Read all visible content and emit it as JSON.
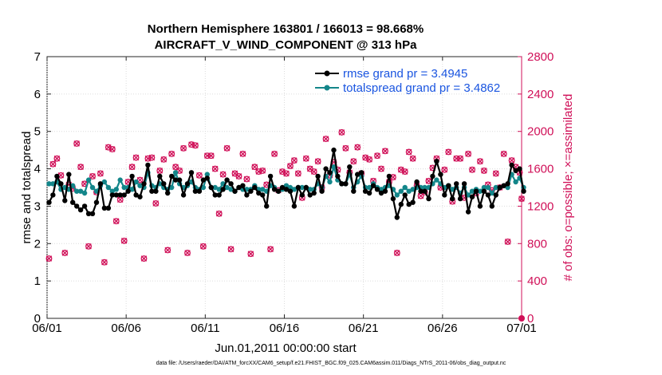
{
  "chart_data": {
    "type": "line",
    "title": "Northern Hemisphere 163801 / 166013 = 98.668%",
    "subtitle": "AIRCRAFT_V_WIND_COMPONENT @ 313 hPa",
    "xlabel": "Jun.01,2011 00:00:00 start",
    "ylabel": "rmse and totalspread",
    "y2label": "# of obs: o=possible; ×=assimilated",
    "footnote": "data file: /Users/raeder/DAI/ATM_forcXX/CAM6_setup/f.e21.FHIST_BGC.f09_025.CAM6assim.011/Diags_NTrS_2011-06/obs_diag_output.nc",
    "xlim": [
      0,
      30
    ],
    "ylim": [
      0,
      7
    ],
    "y2lim": [
      0,
      2800
    ],
    "xticks": [
      0,
      5,
      10,
      15,
      20,
      25,
      30
    ],
    "xtick_labels": [
      "06/01",
      "06/06",
      "06/11",
      "06/16",
      "06/21",
      "06/26",
      "07/01"
    ],
    "yticks": [
      0,
      1,
      2,
      3,
      4,
      5,
      6,
      7
    ],
    "ytick_labels": [
      "0",
      "1",
      "2",
      "3",
      "4",
      "5",
      "6",
      "7"
    ],
    "y2ticks": [
      0,
      400,
      800,
      1200,
      1600,
      2000,
      2400,
      2800
    ],
    "y2tick_labels": [
      "0",
      "400",
      "800",
      "1200",
      "1600",
      "2000",
      "2400",
      "2800"
    ],
    "series": [
      {
        "name": "rmse grand pr = 3.4945",
        "axis": "left",
        "color": "#000000",
        "x_start": 0.125,
        "x_step": 0.25,
        "values": [
          3.1,
          3.3,
          3.8,
          3.6,
          3.15,
          3.85,
          3.1,
          3.0,
          2.9,
          3.0,
          2.8,
          2.8,
          3.1,
          3.6,
          2.95,
          2.95,
          3.3,
          3.3,
          3.3,
          3.3,
          3.4,
          3.8,
          3.3,
          3.25,
          3.6,
          4.1,
          3.4,
          3.4,
          3.8,
          3.6,
          3.35,
          3.8,
          3.7,
          3.7,
          3.3,
          3.6,
          3.9,
          3.4,
          3.4,
          3.7,
          3.75,
          3.5,
          3.3,
          3.3,
          3.45,
          3.7,
          3.6,
          3.4,
          3.5,
          3.55,
          3.3,
          3.4,
          3.5,
          3.35,
          3.3,
          3.0,
          3.8,
          3.45,
          3.4,
          3.5,
          3.45,
          3.4,
          3.0,
          3.5,
          3.3,
          3.5,
          3.3,
          3.35,
          3.8,
          3.4,
          4.0,
          3.9,
          4.5,
          3.8,
          3.6,
          3.6,
          4.05,
          3.4,
          3.85,
          3.9,
          3.4,
          3.35,
          3.55,
          3.45,
          3.35,
          3.4,
          3.8,
          3.2,
          2.7,
          3.05,
          3.3,
          3.05,
          3.1,
          3.65,
          3.4,
          3.4,
          3.2,
          3.8,
          4.2,
          3.85,
          3.3,
          3.55,
          3.2,
          3.6,
          3.2,
          3.6,
          2.85,
          3.25,
          3.4,
          3.0,
          3.4,
          3.3,
          3.0,
          3.3,
          3.5,
          3.55,
          3.6,
          4.1,
          3.95,
          4.0,
          3.4
        ]
      },
      {
        "name": "totalspread grand pr = 3.4862",
        "axis": "left",
        "color": "#13868a",
        "x_start": 0.125,
        "x_step": 0.25,
        "values": [
          3.6,
          3.6,
          3.65,
          3.45,
          3.5,
          3.45,
          3.55,
          3.4,
          3.4,
          3.35,
          3.7,
          3.5,
          3.4,
          3.55,
          3.65,
          3.5,
          3.4,
          3.45,
          3.7,
          3.5,
          3.5,
          3.45,
          3.65,
          3.55,
          3.5,
          3.9,
          3.55,
          3.5,
          3.6,
          3.5,
          3.45,
          3.5,
          3.9,
          3.6,
          3.5,
          3.55,
          3.65,
          3.5,
          3.45,
          3.5,
          3.85,
          3.5,
          3.5,
          3.45,
          3.6,
          3.5,
          3.45,
          3.4,
          3.5,
          3.45,
          3.45,
          3.45,
          3.55,
          3.45,
          3.45,
          3.4,
          3.55,
          3.5,
          3.4,
          3.45,
          3.55,
          3.5,
          3.45,
          3.5,
          3.5,
          3.5,
          3.45,
          3.45,
          3.6,
          3.5,
          3.8,
          3.65,
          4.05,
          3.7,
          3.6,
          3.6,
          3.85,
          3.5,
          3.65,
          3.8,
          3.5,
          3.5,
          3.6,
          3.5,
          3.45,
          3.5,
          3.55,
          3.45,
          3.3,
          3.4,
          3.5,
          3.4,
          3.45,
          3.5,
          3.5,
          3.5,
          3.5,
          3.6,
          3.7,
          3.6,
          3.5,
          3.55,
          3.45,
          3.5,
          3.35,
          3.5,
          3.3,
          3.4,
          3.45,
          3.4,
          3.5,
          3.5,
          3.35,
          3.5,
          3.5,
          3.55,
          3.5,
          3.85,
          3.65,
          3.75,
          3.5
        ]
      },
      {
        "name": "# of obs possible (o) / assimilated (×)",
        "axis": "right",
        "color": "#d01058",
        "x": [
          0.125,
          0.375,
          0.625,
          0.875,
          1.125,
          1.375,
          1.625,
          1.875,
          2.125,
          2.375,
          2.625,
          2.875,
          3.125,
          3.375,
          3.625,
          3.875,
          4.125,
          4.375,
          4.625,
          4.875,
          5.125,
          5.375,
          5.625,
          5.875,
          6.125,
          6.375,
          6.625,
          6.875,
          7.125,
          7.375,
          7.625,
          7.875,
          8.125,
          8.375,
          8.625,
          8.875,
          9.125,
          9.375,
          9.625,
          9.875,
          10.125,
          10.375,
          10.625,
          10.875,
          11.125,
          11.375,
          11.625,
          11.875,
          12.125,
          12.375,
          12.625,
          12.875,
          13.125,
          13.375,
          13.625,
          13.875,
          14.125,
          14.375,
          14.625,
          14.875,
          15.125,
          15.375,
          15.625,
          15.875,
          16.125,
          16.375,
          16.625,
          16.875,
          17.125,
          17.375,
          17.625,
          17.875,
          18.125,
          18.375,
          18.625,
          18.875,
          19.125,
          19.375,
          19.625,
          19.875,
          20.125,
          20.375,
          20.625,
          20.875,
          21.125,
          21.375,
          21.625,
          21.875,
          22.125,
          22.375,
          22.625,
          22.875,
          23.125,
          23.375,
          23.625,
          23.875,
          24.125,
          24.375,
          24.625,
          24.875,
          25.125,
          25.375,
          25.625,
          25.875,
          26.125,
          26.375,
          26.625,
          26.875,
          27.125,
          27.375,
          27.625,
          27.875,
          28.125,
          28.375,
          28.625,
          28.875,
          29.125,
          29.375,
          29.625,
          29.875,
          30.0
        ],
        "values": [
          640,
          1650,
          1710,
          1530,
          700,
          1430,
          1390,
          1870,
          1620,
          1440,
          770,
          1520,
          1350,
          1550,
          600,
          1830,
          1810,
          1040,
          1270,
          830,
          1460,
          1620,
          1720,
          1480,
          640,
          1710,
          1720,
          1230,
          1580,
          1700,
          730,
          1760,
          1620,
          1580,
          1820,
          700,
          1860,
          1850,
          1530,
          770,
          1740,
          1740,
          1600,
          1120,
          1540,
          1820,
          740,
          1550,
          1520,
          1760,
          1490,
          690,
          1620,
          1570,
          1580,
          1430,
          740,
          1760,
          1370,
          1570,
          1550,
          1630,
          1690,
          1550,
          1290,
          1710,
          1600,
          1570,
          1680,
          1400,
          1920,
          1530,
          1670,
          1590,
          1990,
          1820,
          1560,
          1680,
          1830,
          1550,
          1720,
          1700,
          1470,
          1740,
          1600,
          1790,
          1460,
          1510,
          700,
          1590,
          1570,
          1780,
          1710,
          1420,
          1310,
          1350,
          1470,
          1610,
          1710,
          1400,
          1590,
          1780,
          1250,
          1710,
          1710,
          1290,
          1760,
          1590,
          1340,
          1680,
          1580,
          1430,
          1370,
          1550,
          1400,
          1760,
          820,
          1690,
          1620,
          1560,
          1280
        ]
      }
    ],
    "legend_position": "top-right"
  }
}
